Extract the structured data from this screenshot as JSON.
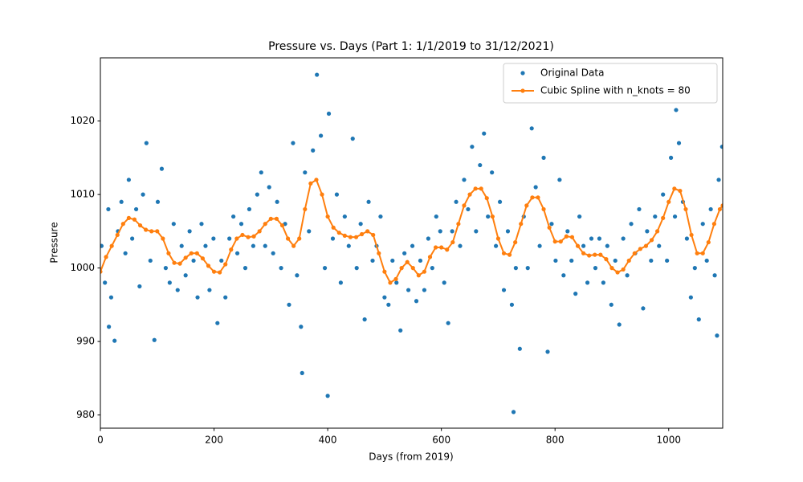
{
  "chart_data": {
    "type": "scatter",
    "title": "Pressure vs. Days (Part 1: 1/1/2019 to 31/12/2021)",
    "x_label": "Days (from 2019)",
    "y_label": "Pressure",
    "xlim": [
      0,
      1095
    ],
    "ylim": [
      978.2,
      1028.6
    ],
    "xticks": [
      0,
      200,
      400,
      600,
      800,
      1000
    ],
    "yticks": [
      980,
      990,
      1000,
      1010,
      1020
    ],
    "legend": "upper right",
    "series": [
      {
        "name": "Original Data",
        "type": "scatter",
        "color": "#1f77b4",
        "x": [
          2,
          8,
          14,
          19,
          25,
          31,
          37,
          44,
          50,
          56,
          63,
          69,
          75,
          81,
          88,
          95,
          101,
          108,
          115,
          122,
          129,
          136,
          143,
          150,
          157,
          164,
          171,
          178,
          185,
          192,
          199,
          206,
          213,
          220,
          227,
          234,
          241,
          248,
          255,
          262,
          269,
          276,
          283,
          290,
          297,
          304,
          311,
          318,
          325,
          332,
          339,
          346,
          353,
          360,
          367,
          374,
          381,
          388,
          395,
          402,
          409,
          416,
          423,
          430,
          437,
          444,
          451,
          458,
          465,
          472,
          479,
          486,
          493,
          500,
          507,
          514,
          521,
          528,
          535,
          542,
          549,
          556,
          563,
          570,
          577,
          584,
          591,
          598,
          605,
          612,
          619,
          626,
          633,
          640,
          647,
          654,
          661,
          668,
          675,
          682,
          689,
          696,
          703,
          710,
          717,
          724,
          731,
          738,
          745,
          752,
          759,
          766,
          773,
          780,
          787,
          794,
          801,
          808,
          815,
          822,
          829,
          836,
          843,
          850,
          857,
          864,
          871,
          878,
          885,
          892,
          899,
          906,
          913,
          920,
          927,
          934,
          941,
          948,
          955,
          962,
          969,
          976,
          983,
          990,
          997,
          1004,
          1011,
          1018,
          1025,
          1032,
          1039,
          1046,
          1053,
          1060,
          1067,
          1074,
          1081,
          1088,
          1094,
          400,
          355,
          727,
          1013,
          1085,
          15
        ],
        "values": [
          1003,
          998,
          1008,
          996,
          990.1,
          1005,
          1009,
          1002,
          1012,
          1004,
          1008,
          997.5,
          1010,
          1017,
          1001,
          990.2,
          1009,
          1013.5,
          1000,
          998,
          1006,
          997,
          1003,
          999,
          1005,
          1001,
          996,
          1006,
          1003,
          997,
          1004,
          992.5,
          1001,
          996,
          1004,
          1007,
          1002,
          1006,
          1000,
          1008,
          1003,
          1010,
          1013,
          1003,
          1011,
          1002,
          1009,
          1000,
          1006,
          995,
          1017,
          999,
          992,
          1013,
          1005,
          1016,
          1026.3,
          1018,
          1000,
          1021,
          1004,
          1010,
          998,
          1007,
          1003,
          1017.6,
          1000,
          1006,
          993,
          1009,
          1001,
          1003,
          1007,
          996,
          995,
          1001,
          998,
          991.5,
          1002,
          997,
          1003,
          995.5,
          1001,
          997,
          1004,
          1000,
          1007,
          1005,
          998,
          992.5,
          1005,
          1009,
          1003,
          1012,
          1008,
          1016.5,
          1005,
          1014,
          1018.3,
          1007,
          1013,
          1003,
          1009,
          997,
          1005,
          995,
          1000,
          989,
          1007,
          1000,
          1019,
          1011,
          1003,
          1015,
          988.6,
          1006,
          1001,
          1012,
          999,
          1005,
          1001,
          996.5,
          1007,
          1003,
          998,
          1004,
          1000,
          1004,
          998,
          1003,
          995,
          1001,
          992.3,
          1004,
          999,
          1006,
          1002,
          1008,
          994.5,
          1005,
          1001,
          1007,
          1003,
          1010,
          1001,
          1015,
          1007,
          1017,
          1009,
          1004,
          996,
          1000,
          993,
          1006,
          1001,
          1008,
          999,
          1012,
          1016.5,
          982.6,
          985.7,
          980.4,
          1021.5,
          990.8,
          992
        ]
      },
      {
        "name": "Cubic Spline with n_knots = 80",
        "type": "line",
        "color": "#ff7f0e",
        "x": [
          0,
          10,
          20,
          30,
          40,
          50,
          60,
          70,
          80,
          90,
          100,
          110,
          120,
          130,
          140,
          150,
          160,
          170,
          180,
          190,
          200,
          210,
          220,
          230,
          240,
          250,
          260,
          270,
          280,
          290,
          300,
          310,
          320,
          330,
          340,
          350,
          360,
          370,
          380,
          390,
          400,
          410,
          420,
          430,
          440,
          450,
          460,
          470,
          480,
          490,
          500,
          510,
          520,
          530,
          540,
          550,
          560,
          570,
          580,
          590,
          600,
          610,
          620,
          630,
          640,
          650,
          660,
          670,
          680,
          690,
          700,
          710,
          720,
          730,
          740,
          750,
          760,
          770,
          780,
          790,
          800,
          810,
          820,
          830,
          840,
          850,
          860,
          870,
          880,
          890,
          900,
          910,
          920,
          930,
          940,
          950,
          960,
          970,
          980,
          990,
          1000,
          1010,
          1020,
          1030,
          1040,
          1050,
          1060,
          1070,
          1080,
          1090,
          1095
        ],
        "values": [
          999.5,
          1001.5,
          1003,
          1004.5,
          1006,
          1006.8,
          1006.6,
          1005.8,
          1005.2,
          1005,
          1005,
          1004,
          1002,
          1000.7,
          1000.6,
          1001.4,
          1002,
          1002,
          1001.3,
          1000.3,
          999.5,
          999.4,
          1000.5,
          1002.5,
          1004,
          1004.5,
          1004.2,
          1004.3,
          1005,
          1006,
          1006.7,
          1006.7,
          1005.8,
          1004,
          1003,
          1004,
          1008,
          1011.5,
          1012,
          1010,
          1007,
          1005.5,
          1004.8,
          1004.4,
          1004.2,
          1004.2,
          1004.6,
          1005,
          1004.5,
          1002,
          999.5,
          998,
          998.5,
          1000,
          1000.8,
          1000,
          999,
          999.5,
          1001.5,
          1002.8,
          1002.8,
          1002.5,
          1003.5,
          1006,
          1008.5,
          1010,
          1010.8,
          1010.8,
          1009.5,
          1007,
          1004,
          1002,
          1001.8,
          1003.5,
          1006,
          1008.5,
          1009.6,
          1009.6,
          1008,
          1005.5,
          1003.6,
          1003.6,
          1004.3,
          1004.2,
          1003,
          1002,
          1001.7,
          1001.8,
          1001.8,
          1001.2,
          1000,
          999.4,
          999.8,
          1001,
          1002,
          1002.6,
          1003,
          1003.8,
          1005,
          1006.8,
          1009,
          1010.8,
          1010.5,
          1008,
          1004.5,
          1002,
          1002,
          1003.5,
          1006,
          1008,
          1008.5
        ]
      }
    ]
  }
}
